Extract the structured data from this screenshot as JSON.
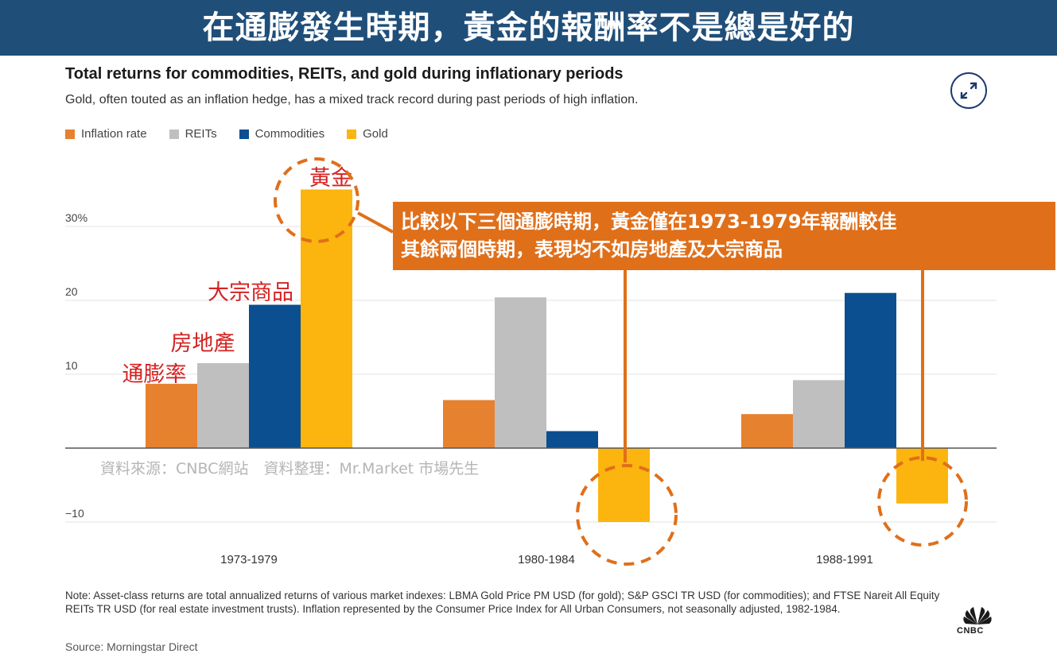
{
  "banner": {
    "text": "在通膨發生時期，黃金的報酬率不是總是好的"
  },
  "chart_data": {
    "type": "bar",
    "title": "Total returns for commodities, REITs, and gold during inflationary periods",
    "subtitle": "Gold, often touted as an inflation hedge, has a mixed track record during past periods of high inflation.",
    "categories": [
      "1973-1979",
      "1980-1984",
      "1988-1991"
    ],
    "series": [
      {
        "name": "Inflation rate",
        "color": "#e6812f",
        "values": [
          8.7,
          6.5,
          4.6
        ]
      },
      {
        "name": "REITs",
        "color": "#bfbfbf",
        "values": [
          11.5,
          20.4,
          9.2
        ]
      },
      {
        "name": "Commodities",
        "color": "#0b4f90",
        "values": [
          19.4,
          2.3,
          21.0
        ]
      },
      {
        "name": "Gold",
        "color": "#fbb50e",
        "values": [
          35.0,
          -10.0,
          -7.5
        ]
      }
    ],
    "yticks": [
      {
        "value": 30,
        "label": "30%"
      },
      {
        "value": 20,
        "label": "20"
      },
      {
        "value": 10,
        "label": "10"
      },
      {
        "value": -10,
        "label": "−10"
      }
    ],
    "ylim": [
      -12,
      38
    ],
    "grid": true,
    "legend_position": "top-left"
  },
  "annotations": {
    "gold_label": "黃金",
    "commodities_label": "大宗商品",
    "reits_label": "房地產",
    "inflation_label": "通膨率",
    "watermark": "資料來源：CNBC網站　資料整理：Mr.Market 市場先生",
    "callout_line1": "比較以下三個通膨時期，黃金僅在1973-1979年報酬較佳",
    "callout_line2": "其餘兩個時期，表現均不如房地產及大宗商品",
    "highlight_color": "#e06f1a",
    "annotation_text_color": "#d42222"
  },
  "footnote": "Note: Asset-class returns are total annualized returns of various market indexes: LBMA Gold Price PM USD (for gold); S&P GSCI TR USD (for commodities); and FTSE Nareit All Equity REITs TR USD (for real estate investment trusts). Inflation represented by the Consumer Price Index for All Urban Consumers, not seasonally adjusted, 1982-1984.",
  "source": "Source: Morningstar Direct",
  "logo": {
    "name": "CNBC",
    "icon": "peacock-icon"
  },
  "expand_icon": "expand-icon"
}
